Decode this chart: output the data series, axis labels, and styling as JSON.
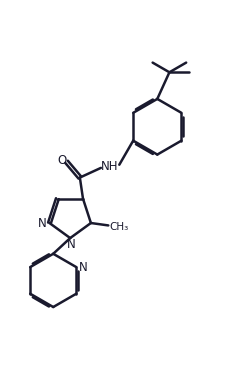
{
  "background_color": "#ffffff",
  "line_color": "#1a1a2e",
  "line_width": 1.8,
  "figsize": [
    2.42,
    3.89
  ],
  "dpi": 100,
  "xlim": [
    0,
    10
  ],
  "ylim": [
    0,
    16
  ]
}
